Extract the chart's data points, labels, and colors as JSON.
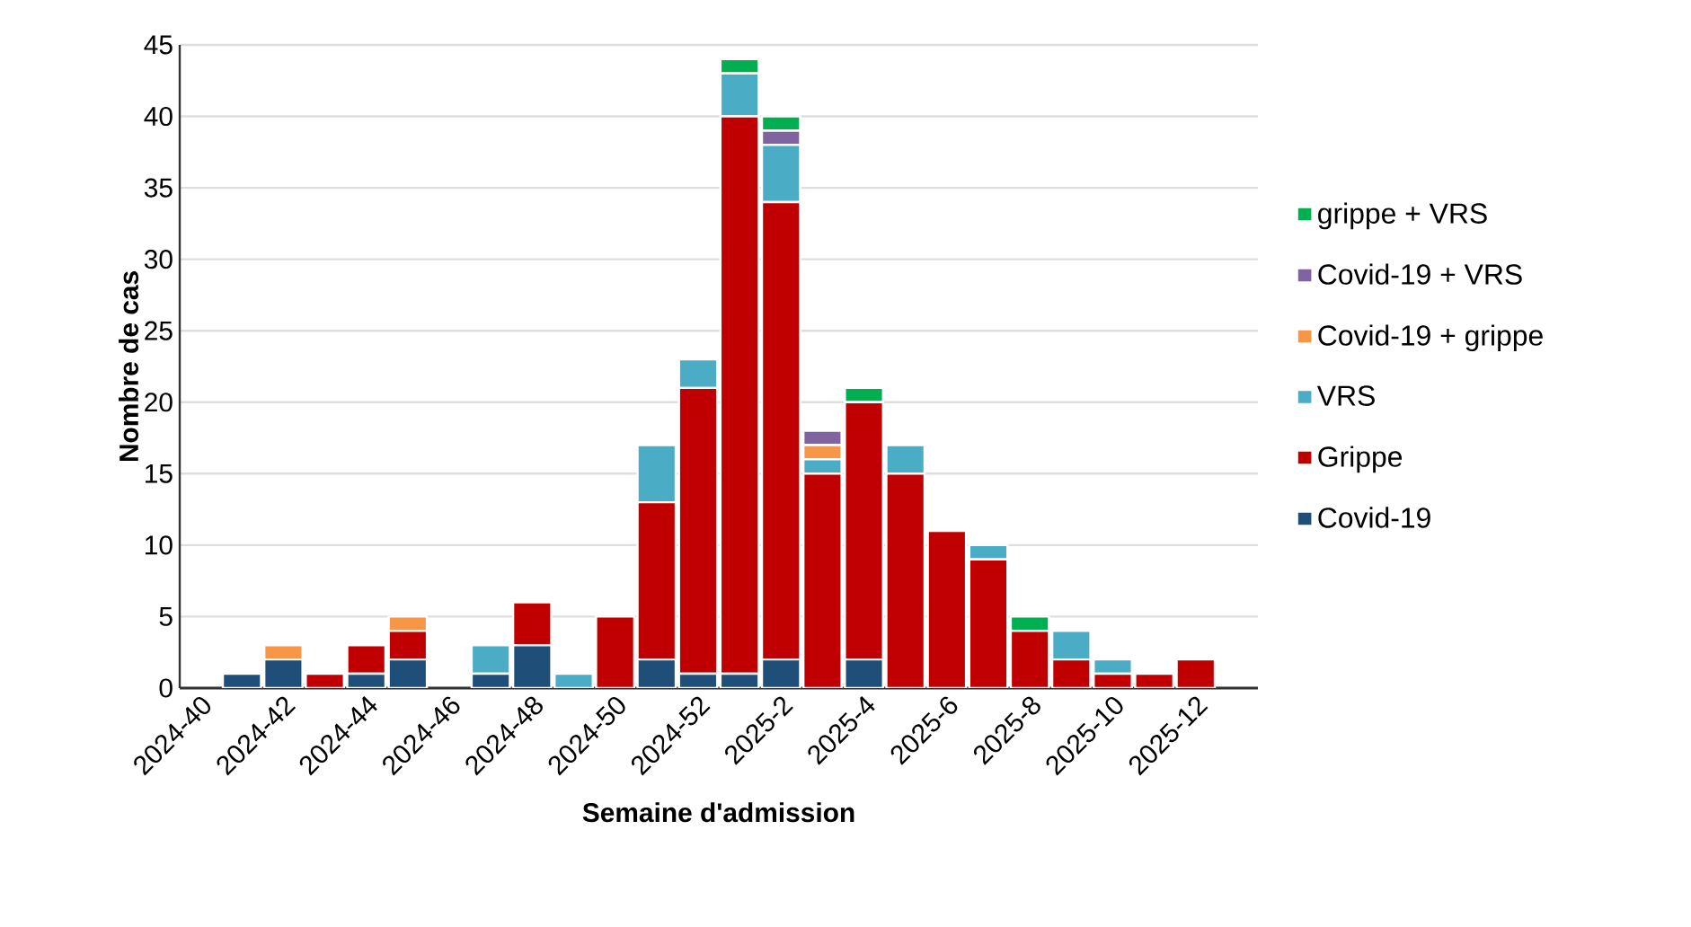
{
  "chart_data": {
    "type": "bar",
    "stacked": true,
    "xlabel": "Semaine d'admission",
    "ylabel": "Nombre de cas",
    "categories": [
      "2024-40",
      null,
      "2024-42",
      null,
      "2024-44",
      null,
      "2024-46",
      null,
      "2024-48",
      null,
      "2024-50",
      null,
      "2024-52",
      null,
      "2025-2",
      null,
      "2025-4",
      null,
      "2025-6",
      null,
      "2025-8",
      null,
      "2025-10",
      null,
      "2025-12"
    ],
    "ylim": [
      0,
      45
    ],
    "yticks": [
      0,
      5,
      10,
      15,
      20,
      25,
      30,
      35,
      40,
      45
    ],
    "grid": "y",
    "legend": "right",
    "series": [
      {
        "name": "Covid-19",
        "color": "#1f4e79",
        "values": [
          0,
          1,
          2,
          0,
          1,
          2,
          0,
          1,
          3,
          0,
          0,
          2,
          1,
          1,
          2,
          0,
          2,
          0,
          0,
          0,
          0,
          0,
          0,
          0,
          0
        ]
      },
      {
        "name": "Grippe",
        "color": "#c00000",
        "values": [
          0,
          0,
          0,
          1,
          2,
          2,
          0,
          0,
          3,
          0,
          5,
          11,
          20,
          39,
          32,
          15,
          18,
          15,
          11,
          9,
          4,
          2,
          1,
          1,
          2
        ]
      },
      {
        "name": "VRS",
        "color": "#4bacc6",
        "values": [
          0,
          0,
          0,
          0,
          0,
          0,
          0,
          2,
          0,
          1,
          0,
          4,
          2,
          3,
          4,
          1,
          0,
          2,
          0,
          1,
          0,
          2,
          1,
          0,
          0
        ]
      },
      {
        "name": "Covid-19 + grippe",
        "color": "#f79646",
        "values": [
          0,
          0,
          1,
          0,
          0,
          1,
          0,
          0,
          0,
          0,
          0,
          0,
          0,
          0,
          0,
          1,
          0,
          0,
          0,
          0,
          0,
          0,
          0,
          0,
          0
        ]
      },
      {
        "name": "Covid-19 + VRS",
        "color": "#8064a2",
        "values": [
          0,
          0,
          0,
          0,
          0,
          0,
          0,
          0,
          0,
          0,
          0,
          0,
          0,
          0,
          1,
          1,
          0,
          0,
          0,
          0,
          0,
          0,
          0,
          0,
          0
        ]
      },
      {
        "name": "grippe + VRS",
        "color": "#00b050",
        "values": [
          0,
          0,
          0,
          0,
          0,
          0,
          0,
          0,
          0,
          0,
          0,
          0,
          0,
          1,
          1,
          0,
          1,
          0,
          0,
          0,
          1,
          0,
          0,
          0,
          0
        ]
      }
    ]
  }
}
